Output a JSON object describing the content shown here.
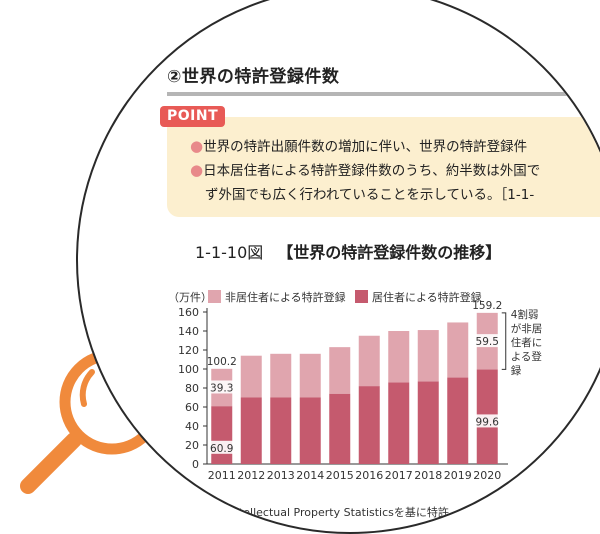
{
  "section_title": "②世界の特許登録件数",
  "point": {
    "badge": "POINT",
    "line1": "世界の特許出願件数の増加に伴い、世界の特許登録件",
    "line2": "日本居住者による特許登録件数のうち、約半数は外国で",
    "line3": "ず外国でも広く行われていることを示している。［1-1-"
  },
  "figure": {
    "number": "1-1-10図",
    "title": "【世界の特許登録件数の推移】"
  },
  "source_fragment": "ntellectual Property Statisticsを基に特許",
  "colors": {
    "non_resident": "#e0a5ae",
    "resident": "#c55a6e",
    "accent": "#e85a56",
    "magnifier": "#f08a3c"
  },
  "chart_data": {
    "type": "bar",
    "stacked": true,
    "unit_label": "（万件）",
    "categories": [
      "2011",
      "2012",
      "2013",
      "2014",
      "2015",
      "2016",
      "2017",
      "2018",
      "2019",
      "2020"
    ],
    "series": [
      {
        "name": "居住者による特許登録",
        "values": [
          60.9,
          70,
          70,
          70,
          74,
          82,
          86,
          87,
          91,
          99.6
        ]
      },
      {
        "name": "非居住者による特許登録",
        "values": [
          39.3,
          44,
          46,
          46,
          49,
          53,
          54,
          54,
          58,
          59.5
        ]
      }
    ],
    "totals": [
      100.2,
      114,
      116,
      116,
      123,
      135,
      140,
      141,
      149,
      159.2
    ],
    "data_labels": {
      "total_2011": "100.2",
      "non_res_2011": "39.3",
      "res_2011": "60.9",
      "total_2020": "159.2",
      "non_res_2020": "59.5",
      "res_2020": "99.6"
    },
    "yticks": [
      0,
      20,
      40,
      60,
      80,
      100,
      120,
      140,
      160
    ],
    "ylim": [
      0,
      160
    ],
    "legend_position": "top",
    "annotation": [
      "4割弱",
      "が非居",
      "住者に",
      "よる登",
      "録"
    ]
  }
}
